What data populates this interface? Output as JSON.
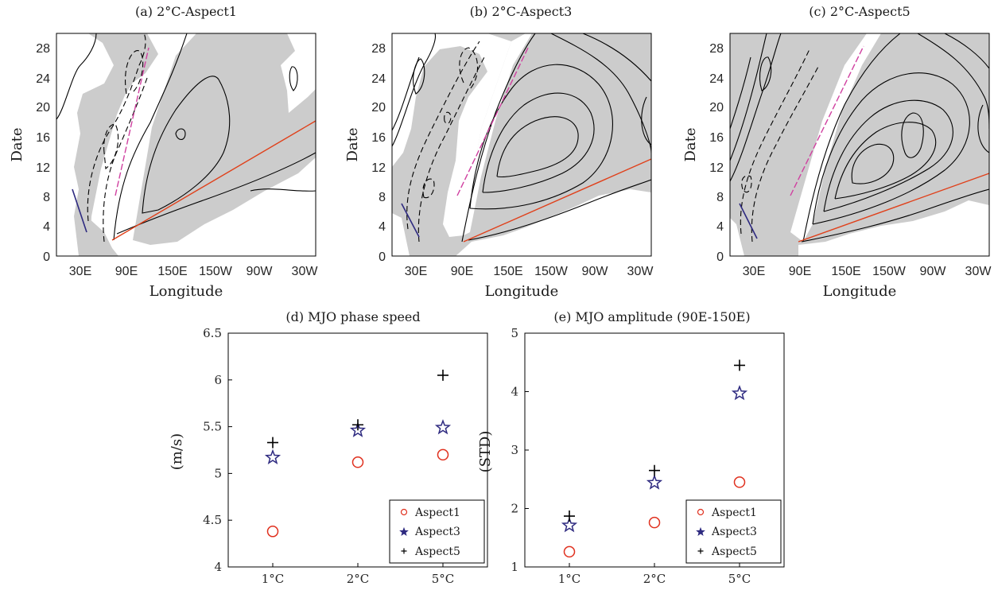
{
  "colors": {
    "aspect1": "#e0301e",
    "aspect3": "#2e2a80",
    "aspect5": "#000000",
    "shading": "#cccccc",
    "contour": "#000000",
    "speed_line": "#e0401a",
    "magenta_line": "#d040a0",
    "blue_line": "#2e2a80"
  },
  "chart_data": [
    {
      "type": "heatmap",
      "panel": "a",
      "title": "(a) 2°C-Aspect1",
      "xlabel": "Longitude",
      "ylabel": "Date",
      "x_ticks": [
        "30E",
        "90E",
        "150E",
        "150W",
        "90W",
        "30W"
      ],
      "y_ticks": [
        "0",
        "4",
        "8",
        "12",
        "16",
        "20",
        "24",
        "28"
      ],
      "ylim": [
        0,
        30
      ],
      "speed_line": {
        "from": [
          90,
          2
        ],
        "to": [
          360,
          18
        ]
      }
    },
    {
      "type": "heatmap",
      "panel": "b",
      "title": "(b) 2°C-Aspect3",
      "xlabel": "Longitude",
      "ylabel": "Date",
      "x_ticks": [
        "30E",
        "90E",
        "150E",
        "150W",
        "90W",
        "30W"
      ],
      "y_ticks": [
        "0",
        "4",
        "8",
        "12",
        "16",
        "20",
        "24",
        "28"
      ],
      "ylim": [
        0,
        30
      ],
      "speed_line": {
        "from": [
          100,
          2
        ],
        "to": [
          360,
          13
        ]
      }
    },
    {
      "type": "heatmap",
      "panel": "c",
      "title": "(c) 2°C-Aspect5",
      "xlabel": "Longitude",
      "ylabel": "Date",
      "x_ticks": [
        "30E",
        "90E",
        "150E",
        "150W",
        "90W",
        "30W"
      ],
      "y_ticks": [
        "0",
        "4",
        "8",
        "12",
        "16",
        "20",
        "24",
        "28"
      ],
      "ylim": [
        0,
        30
      ],
      "speed_line": {
        "from": [
          100,
          2
        ],
        "to": [
          360,
          11
        ]
      }
    },
    {
      "type": "scatter",
      "panel": "d",
      "title": "(d) MJO phase speed",
      "xlabel": "",
      "ylabel": "(m/s)",
      "categories": [
        "1°C",
        "2°C",
        "5°C"
      ],
      "ylim": [
        4,
        6.5
      ],
      "y_ticks": [
        "4",
        "4.5",
        "5",
        "5.5",
        "6",
        "6.5"
      ],
      "series": [
        {
          "name": "Aspect1",
          "marker": "circle",
          "values": [
            4.38,
            5.12,
            5.2
          ]
        },
        {
          "name": "Aspect3",
          "marker": "star",
          "values": [
            5.17,
            5.46,
            5.49
          ]
        },
        {
          "name": "Aspect5",
          "marker": "plus",
          "values": [
            5.33,
            5.52,
            6.05
          ]
        }
      ],
      "legend": "bottom-right"
    },
    {
      "type": "scatter",
      "panel": "e",
      "title": "(e) MJO amplitude (90E-150E)",
      "xlabel": "",
      "ylabel": "(STD)",
      "categories": [
        "1°C",
        "2°C",
        "5°C"
      ],
      "ylim": [
        1,
        5
      ],
      "y_ticks": [
        "1",
        "2",
        "3",
        "4",
        "5"
      ],
      "series": [
        {
          "name": "Aspect1",
          "marker": "circle",
          "values": [
            1.26,
            1.76,
            2.45
          ]
        },
        {
          "name": "Aspect3",
          "marker": "star",
          "values": [
            1.71,
            2.44,
            3.97
          ]
        },
        {
          "name": "Aspect5",
          "marker": "plus",
          "values": [
            1.87,
            2.65,
            4.45
          ]
        }
      ],
      "legend": "bottom-right"
    }
  ]
}
